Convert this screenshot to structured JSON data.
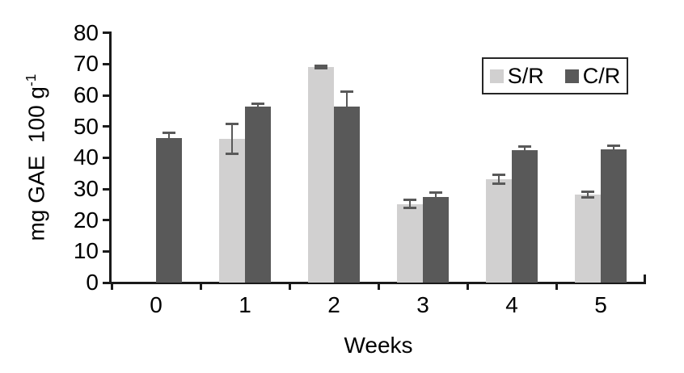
{
  "ui": {
    "ylabel_main": "mg GAE  100 g",
    "ylabel_sup": "-1",
    "xlabel": "Weeks"
  },
  "chart_data": {
    "type": "bar",
    "title": "",
    "xlabel": "Weeks",
    "ylabel": "mg GAE 100 g^-1",
    "categories": [
      "0",
      "1",
      "2",
      "3",
      "4",
      "5"
    ],
    "series": [
      {
        "name": "S/R",
        "color": "#d1d0d0",
        "values": [
          null,
          46.1,
          69.0,
          25.2,
          33.2,
          28.2
        ],
        "errors": [
          null,
          4.8,
          0.4,
          1.2,
          1.4,
          0.9
        ],
        "error_caps": "both"
      },
      {
        "name": "C/R",
        "color": "#595959",
        "values": [
          46.4,
          56.5,
          56.5,
          27.3,
          42.5,
          42.8
        ],
        "errors": [
          1.5,
          0.8,
          4.7,
          1.6,
          1.0,
          1.0
        ],
        "error_caps": "top"
      }
    ],
    "ylim": [
      0,
      80
    ],
    "ytick_step": 10,
    "grid": false,
    "legend_position": "top-right",
    "error_bar_color": "#595959"
  }
}
